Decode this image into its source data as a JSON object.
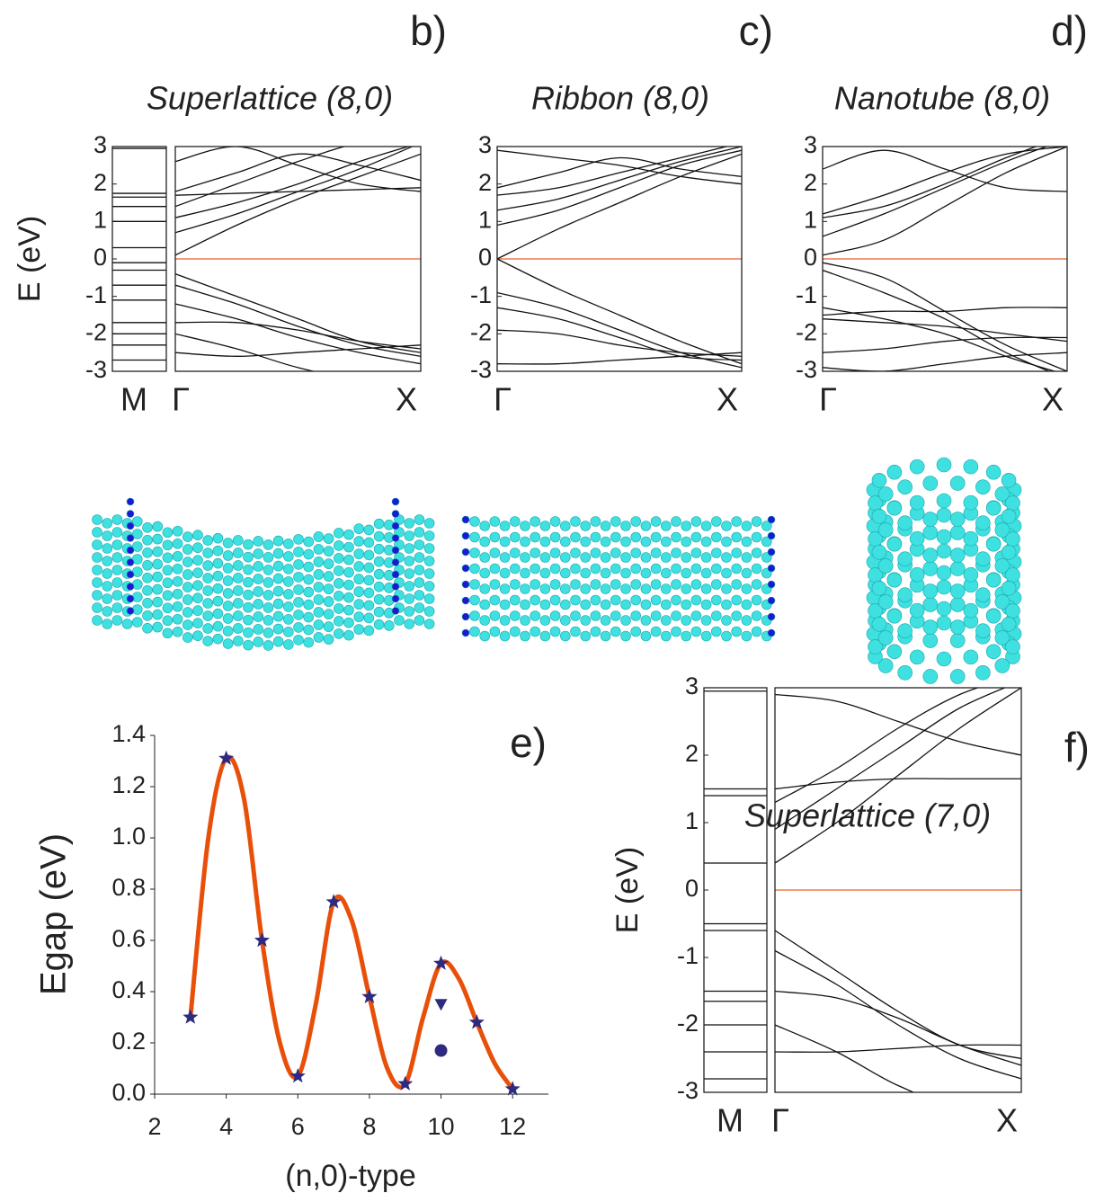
{
  "chart_data": [
    {
      "type": "band",
      "label": "b)",
      "title": "Superlattice (8,0)",
      "ylabel": "E (eV)",
      "ylim": [
        -3,
        3
      ],
      "yticks": [
        -3,
        -2,
        -1,
        0,
        1,
        2,
        3
      ],
      "k_labels": [
        "M",
        "Γ",
        "X"
      ],
      "fermi_level": 0,
      "fermi_color": "#e8602c",
      "line_color": "#111111",
      "m_levels": [
        2.95,
        1.75,
        1.65,
        1.4,
        1.0,
        0.3,
        -0.1,
        -0.3,
        -0.7,
        -1.1,
        -1.7,
        -2.0,
        -2.3,
        -2.7
      ],
      "x": [
        0,
        0.25,
        0.5,
        0.75,
        1
      ],
      "series": [
        {
          "values": [
            0.1,
            0.9,
            1.6,
            2.2,
            2.8
          ]
        },
        {
          "values": [
            0.7,
            1.2,
            1.8,
            2.4,
            3.1
          ]
        },
        {
          "values": [
            1.1,
            1.5,
            2.0,
            2.6,
            3.1
          ]
        },
        {
          "values": [
            1.4,
            2.0,
            2.6,
            3.1,
            3.3
          ]
        },
        {
          "values": [
            1.7,
            1.75,
            1.8,
            1.85,
            1.9
          ]
        },
        {
          "values": [
            1.8,
            2.3,
            2.8,
            2.5,
            2.1
          ]
        },
        {
          "values": [
            2.6,
            3.0,
            2.5,
            2.0,
            1.8
          ]
        },
        {
          "values": [
            -0.4,
            -1.0,
            -1.6,
            -2.2,
            -2.5
          ]
        },
        {
          "values": [
            -0.7,
            -1.2,
            -1.8,
            -2.3,
            -2.6
          ]
        },
        {
          "values": [
            -1.2,
            -1.6,
            -2.1,
            -2.5,
            -2.8
          ]
        },
        {
          "values": [
            -1.7,
            -1.7,
            -1.9,
            -2.2,
            -2.4
          ]
        },
        {
          "values": [
            -2.0,
            -2.4,
            -2.9,
            -3.2,
            -3.0
          ]
        },
        {
          "values": [
            -2.5,
            -2.6,
            -2.5,
            -2.4,
            -2.3
          ]
        }
      ]
    },
    {
      "type": "band",
      "label": "c)",
      "title": "Ribbon (8,0)",
      "ylim": [
        -3,
        3
      ],
      "yticks": [
        -3,
        -2,
        -1,
        0,
        1,
        2,
        3
      ],
      "k_labels": [
        "Γ",
        "X"
      ],
      "fermi_level": 0,
      "fermi_color": "#e8602c",
      "line_color": "#111111",
      "x": [
        0,
        0.25,
        0.5,
        0.75,
        1
      ],
      "series": [
        {
          "values": [
            0,
            0.8,
            1.5,
            2.2,
            2.8
          ]
        },
        {
          "values": [
            0.9,
            1.3,
            1.9,
            2.5,
            2.9
          ]
        },
        {
          "values": [
            1.3,
            1.6,
            2.1,
            2.6,
            3.0
          ]
        },
        {
          "values": [
            1.7,
            1.9,
            2.3,
            2.7,
            3.1
          ]
        },
        {
          "values": [
            1.9,
            2.3,
            2.7,
            2.4,
            2.2
          ]
        },
        {
          "values": [
            2.9,
            2.7,
            2.5,
            2.2,
            2.0
          ]
        },
        {
          "values": [
            0,
            -0.8,
            -1.5,
            -2.2,
            -2.8
          ]
        },
        {
          "values": [
            -0.9,
            -1.3,
            -1.9,
            -2.5,
            -2.9
          ]
        },
        {
          "values": [
            -1.3,
            -1.6,
            -2.1,
            -2.6,
            -2.7
          ]
        },
        {
          "values": [
            -1.9,
            -2.0,
            -2.3,
            -2.5,
            -2.6
          ]
        },
        {
          "values": [
            -2.8,
            -2.8,
            -2.7,
            -2.6,
            -2.5
          ]
        }
      ]
    },
    {
      "type": "band",
      "label": "d)",
      "title": "Nanotube (8,0)",
      "ylim": [
        -3,
        3
      ],
      "yticks": [
        -3,
        -2,
        -1,
        0,
        1,
        2,
        3
      ],
      "k_labels": [
        "Γ",
        "X"
      ],
      "fermi_level": 0,
      "fermi_color": "#e8602c",
      "line_color": "#111111",
      "x": [
        0,
        0.25,
        0.5,
        0.75,
        1
      ],
      "series": [
        {
          "values": [
            0.1,
            0.5,
            1.4,
            2.3,
            3.0
          ]
        },
        {
          "values": [
            0.6,
            1.2,
            1.9,
            2.6,
            3.2
          ]
        },
        {
          "values": [
            1.1,
            1.4,
            2.0,
            2.7,
            3.3
          ]
        },
        {
          "values": [
            1.2,
            1.7,
            2.3,
            2.8,
            3.0
          ]
        },
        {
          "values": [
            2.4,
            2.9,
            2.4,
            1.9,
            1.8
          ]
        },
        {
          "values": [
            -0.1,
            -0.5,
            -1.4,
            -2.3,
            -3.0
          ]
        },
        {
          "values": [
            -0.3,
            -0.9,
            -1.6,
            -2.5,
            -3.2
          ]
        },
        {
          "values": [
            -1.3,
            -1.6,
            -2.0,
            -2.6,
            -3.1
          ]
        },
        {
          "values": [
            -1.5,
            -1.4,
            -1.4,
            -1.3,
            -1.3
          ]
        },
        {
          "values": [
            -1.6,
            -1.7,
            -1.8,
            -2.0,
            -2.2
          ]
        },
        {
          "values": [
            -2.5,
            -2.4,
            -2.2,
            -2.1,
            -2.1
          ]
        },
        {
          "values": [
            -2.9,
            -3.0,
            -2.8,
            -2.6,
            -2.5
          ]
        }
      ]
    },
    {
      "type": "gap",
      "label": "e)",
      "xlabel": "(n,0)-type",
      "ylabel": "Egap (eV)",
      "xlim": [
        2,
        13
      ],
      "xticks": [
        2,
        4,
        6,
        8,
        10,
        12
      ],
      "ylim": [
        0,
        1.4
      ],
      "yticks": [
        {
          "value": 0,
          "label": "0.0"
        },
        0.2,
        0.4,
        0.6,
        0.8,
        {
          "value": 1,
          "label": "1.0"
        },
        1.2,
        1.4
      ],
      "series": [
        {
          "style": "line",
          "color": "#e8500a",
          "x": [
            3,
            3.5,
            4,
            4.5,
            5,
            5.5,
            6,
            6.5,
            7,
            7.5,
            8,
            8.5,
            9,
            9.5,
            10,
            10.5,
            11,
            11.5,
            12
          ],
          "values": [
            0.3,
            1.0,
            1.31,
            1.15,
            0.6,
            0.2,
            0.07,
            0.35,
            0.75,
            0.68,
            0.38,
            0.1,
            0.04,
            0.3,
            0.51,
            0.45,
            0.28,
            0.12,
            0.02
          ]
        },
        {
          "style": "star",
          "color": "#2e2a80",
          "x": [
            3,
            4,
            5,
            6,
            7,
            8,
            9,
            10,
            11,
            12
          ],
          "values": [
            0.3,
            1.31,
            0.6,
            0.07,
            0.75,
            0.38,
            0.04,
            0.51,
            0.28,
            0.02
          ]
        },
        {
          "style": "triangle",
          "color": "#2e2a80",
          "x": [
            10
          ],
          "values": [
            0.35
          ]
        },
        {
          "style": "circle",
          "color": "#2e2a80",
          "x": [
            10
          ],
          "values": [
            0.17
          ]
        }
      ]
    },
    {
      "type": "band",
      "label": "f)",
      "title": "Superlattice (7,0)",
      "ylabel": "E (eV)",
      "ylim": [
        -3,
        3
      ],
      "yticks": [
        -3,
        -2,
        -1,
        0,
        1,
        2,
        3
      ],
      "k_labels": [
        "M",
        "Γ",
        "X"
      ],
      "fermi_level": 0,
      "fermi_color": "#e8602c",
      "line_color": "#111111",
      "m_levels": [
        2.95,
        1.5,
        1.4,
        0.4,
        -0.5,
        -0.6,
        -1.5,
        -1.65,
        -2.0,
        -2.4,
        -2.8
      ],
      "x": [
        0,
        0.25,
        0.5,
        0.75,
        1
      ],
      "series": [
        {
          "values": [
            0.4,
            1.0,
            1.7,
            2.4,
            3.0
          ]
        },
        {
          "values": [
            0.9,
            1.5,
            2.1,
            2.7,
            3.1
          ]
        },
        {
          "values": [
            1.3,
            1.8,
            2.4,
            2.9,
            3.2
          ]
        },
        {
          "values": [
            1.5,
            1.6,
            1.65,
            1.65,
            1.65
          ]
        },
        {
          "values": [
            2.9,
            2.8,
            2.5,
            2.2,
            2.0
          ]
        },
        {
          "values": [
            -0.6,
            -1.2,
            -1.8,
            -2.3,
            -2.5
          ]
        },
        {
          "values": [
            -0.9,
            -1.4,
            -2.0,
            -2.5,
            -2.8
          ]
        },
        {
          "values": [
            -1.5,
            -1.6,
            -1.9,
            -2.3,
            -2.6
          ]
        },
        {
          "values": [
            -2.0,
            -2.4,
            -2.9,
            -3.2,
            -3.0
          ]
        },
        {
          "values": [
            -2.4,
            -2.4,
            -2.35,
            -2.3,
            -2.3
          ]
        }
      ]
    }
  ]
}
